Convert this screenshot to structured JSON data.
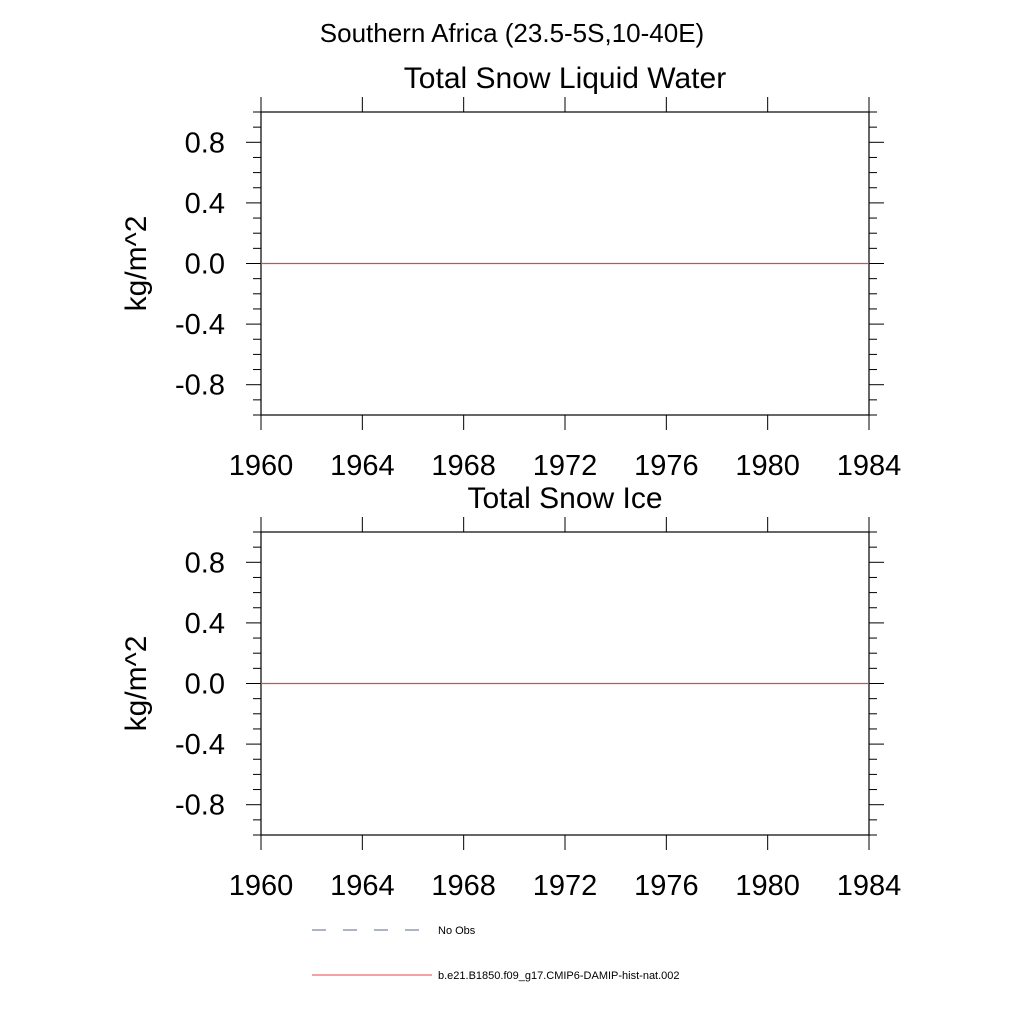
{
  "figure_title": "Southern Africa (23.5-5S,10-40E)",
  "colors": {
    "model_line": "#e8434a",
    "obs_line": "#5b6a8f",
    "axes": "#000000"
  },
  "legend": [
    {
      "label": "No Obs",
      "style": "dashed",
      "color": "#5b6a8f"
    },
    {
      "label": "b.e21.B1850.f09_g17.CMIP6-DAMIP-hist-nat.002",
      "style": "solid",
      "color": "#e8434a"
    }
  ],
  "chart_data": [
    {
      "type": "line",
      "title": "Total Snow Liquid Water",
      "xlabel": "",
      "ylabel": "kg/m^2",
      "xlim": [
        1960,
        1984
      ],
      "ylim": [
        -1.0,
        1.0
      ],
      "xticks": [
        "1960",
        "1964",
        "1968",
        "1972",
        "1976",
        "1980",
        "1984"
      ],
      "yticks": [
        "0.8",
        "0.4",
        "0.0",
        "-0.4",
        "-0.8"
      ],
      "grid": false,
      "series": [
        {
          "name": "b.e21.B1850.f09_g17.CMIP6-DAMIP-hist-nat.002",
          "color": "#e8434a",
          "x": [
            1960,
            1984
          ],
          "y": [
            0.0,
            0.0
          ]
        }
      ]
    },
    {
      "type": "line",
      "title": "Total Snow Ice",
      "xlabel": "",
      "ylabel": "kg/m^2",
      "xlim": [
        1960,
        1984
      ],
      "ylim": [
        -1.0,
        1.0
      ],
      "xticks": [
        "1960",
        "1964",
        "1968",
        "1972",
        "1976",
        "1980",
        "1984"
      ],
      "yticks": [
        "0.8",
        "0.4",
        "0.0",
        "-0.4",
        "-0.8"
      ],
      "grid": false,
      "series": [
        {
          "name": "b.e21.B1850.f09_g17.CMIP6-DAMIP-hist-nat.002",
          "color": "#e8434a",
          "x": [
            1960,
            1984
          ],
          "y": [
            0.0,
            0.0
          ]
        }
      ]
    }
  ]
}
